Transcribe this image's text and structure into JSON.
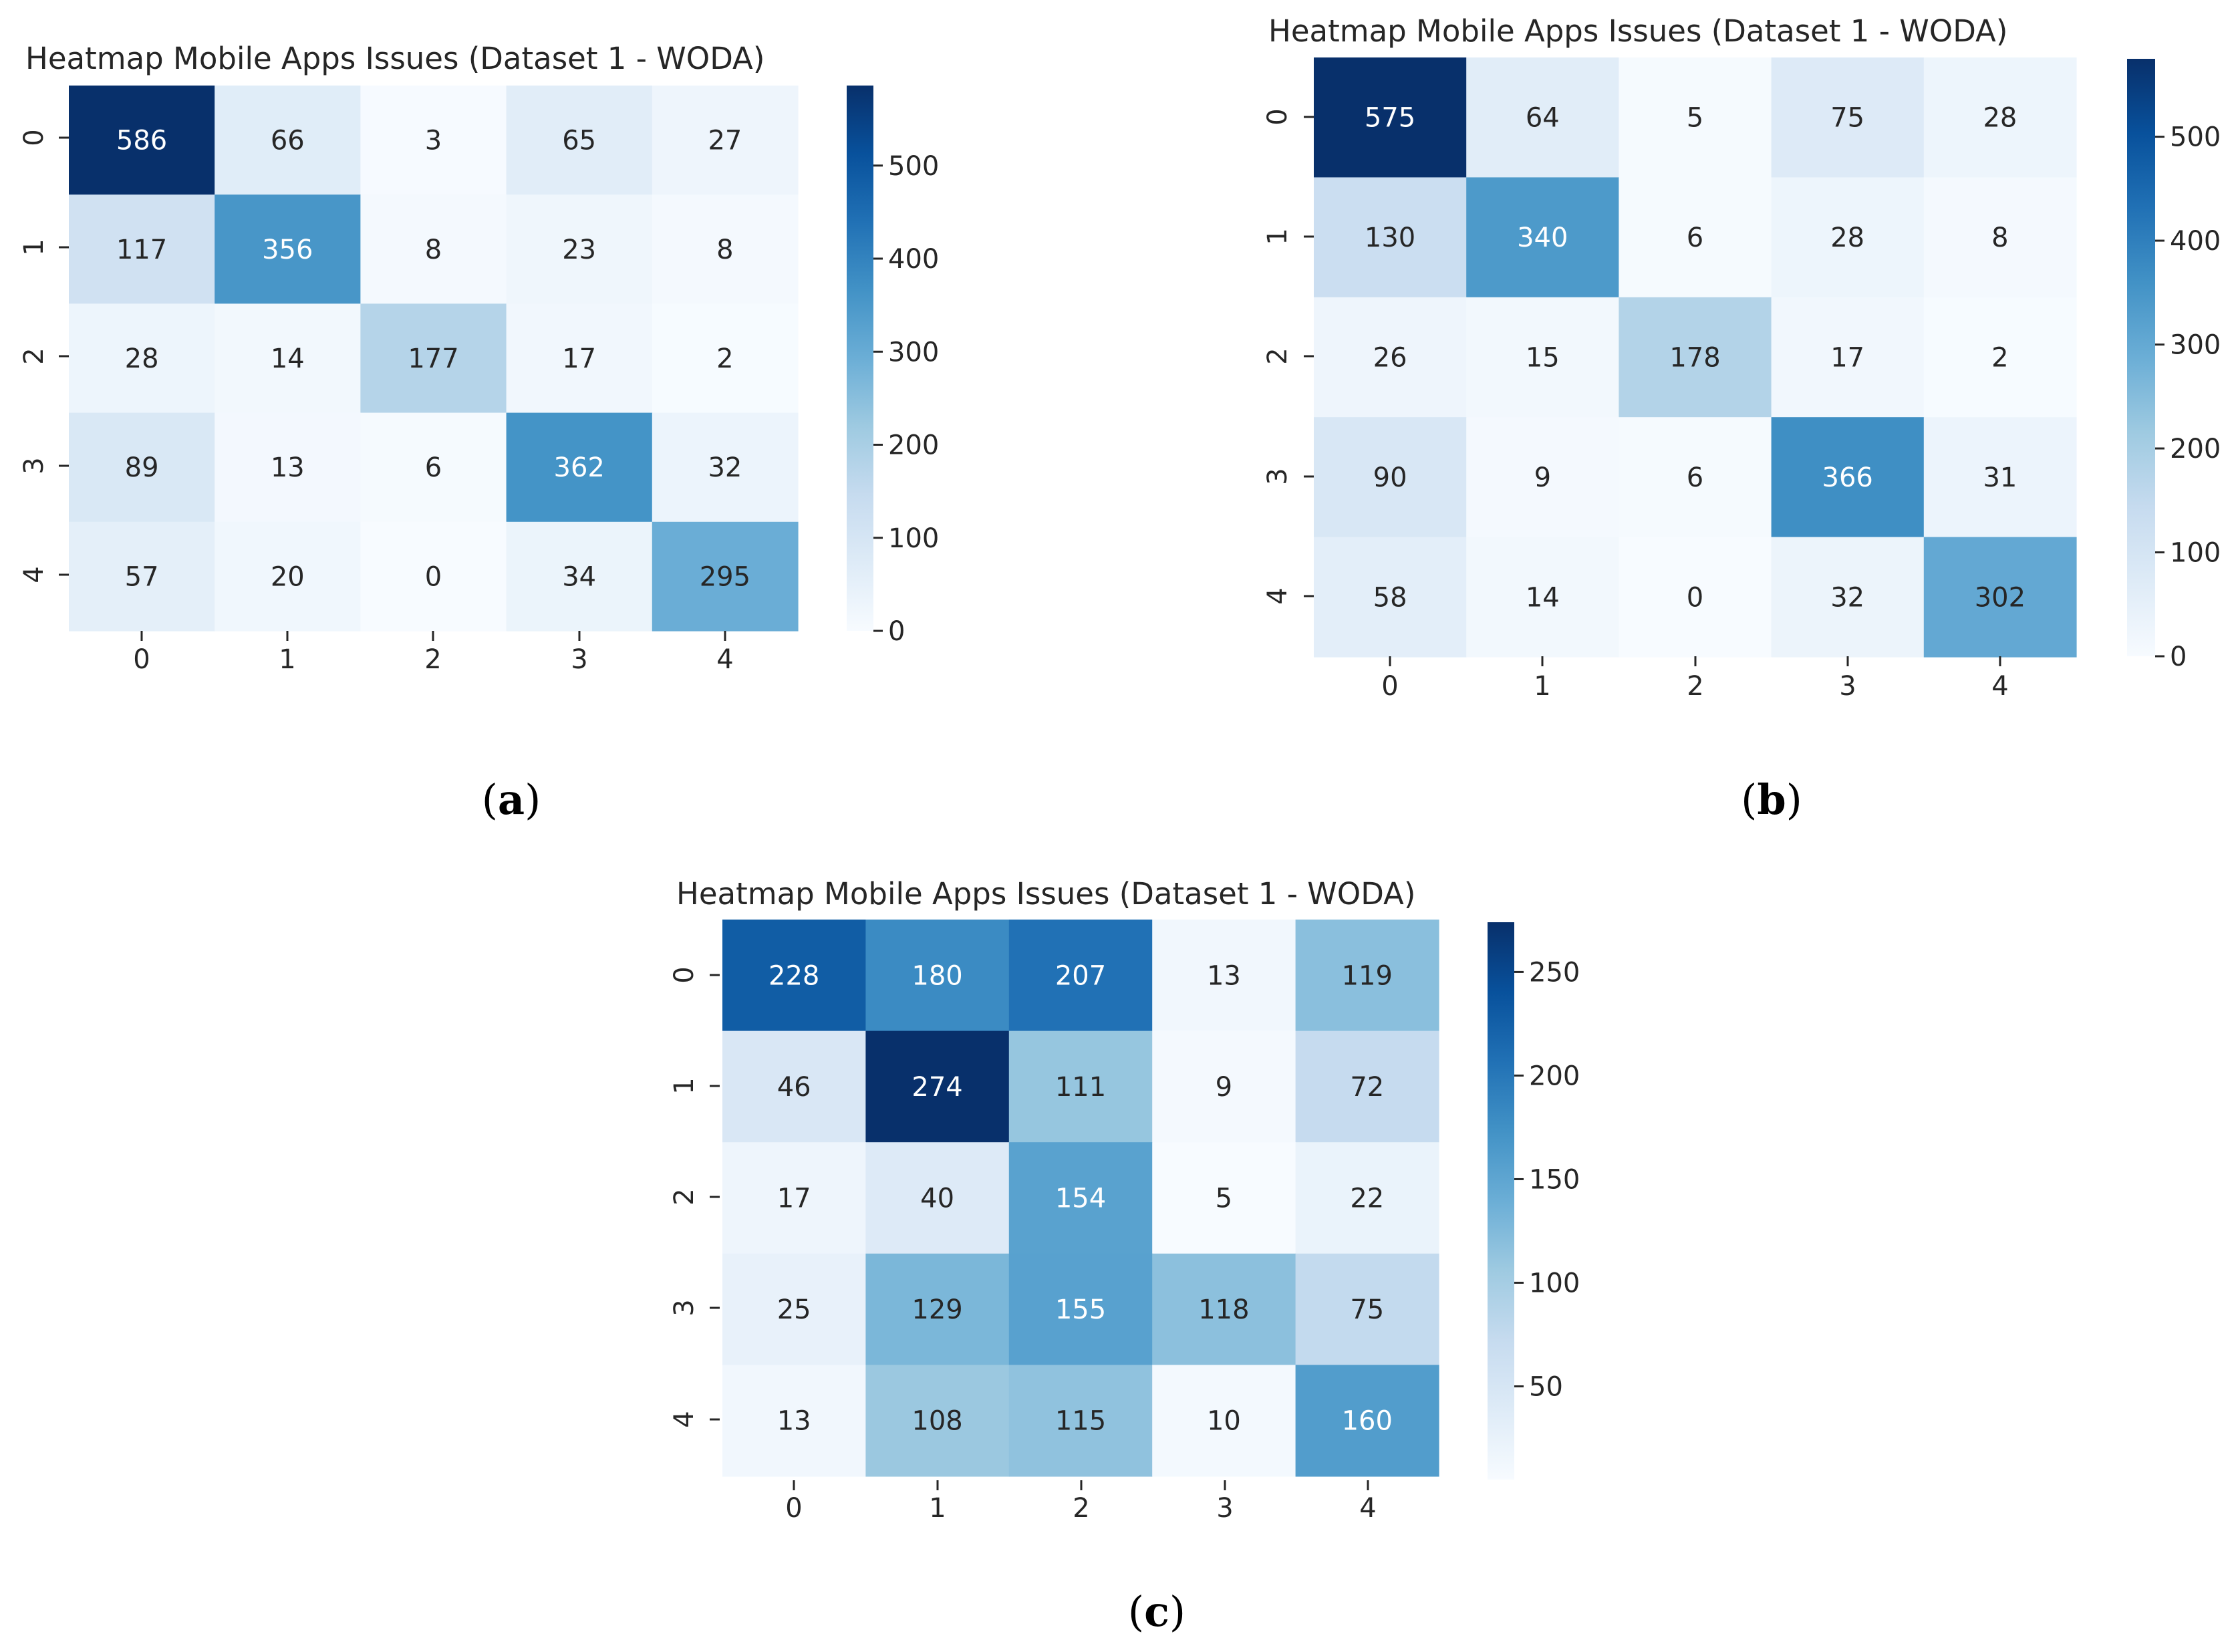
{
  "chart_data": [
    {
      "id": "a",
      "type": "heatmap",
      "title": "Heatmap  Mobile Apps Issues (Dataset 1 - WODA)",
      "caption_letter": "a",
      "x_tick_labels": [
        "0",
        "1",
        "2",
        "3",
        "4"
      ],
      "y_tick_labels": [
        "0",
        "1",
        "2",
        "3",
        "4"
      ],
      "values": [
        [
          586,
          66,
          3,
          65,
          27
        ],
        [
          117,
          356,
          8,
          23,
          8
        ],
        [
          28,
          14,
          177,
          17,
          2
        ],
        [
          89,
          13,
          6,
          362,
          32
        ],
        [
          57,
          20,
          0,
          34,
          295
        ]
      ],
      "colormap": "Blues",
      "vmin": 0,
      "vmax": 586,
      "colorbar_ticks": [
        0,
        100,
        200,
        300,
        400,
        500
      ]
    },
    {
      "id": "b",
      "type": "heatmap",
      "title": "Heatmap  Mobile Apps Issues (Dataset 1 - WODA)",
      "caption_letter": "b",
      "x_tick_labels": [
        "0",
        "1",
        "2",
        "3",
        "4"
      ],
      "y_tick_labels": [
        "0",
        "1",
        "2",
        "3",
        "4"
      ],
      "values": [
        [
          575,
          64,
          5,
          75,
          28
        ],
        [
          130,
          340,
          6,
          28,
          8
        ],
        [
          26,
          15,
          178,
          17,
          2
        ],
        [
          90,
          9,
          6,
          366,
          31
        ],
        [
          58,
          14,
          0,
          32,
          302
        ]
      ],
      "colormap": "Blues",
      "vmin": 0,
      "vmax": 575,
      "colorbar_ticks": [
        0,
        100,
        200,
        300,
        400,
        500
      ]
    },
    {
      "id": "c",
      "type": "heatmap",
      "title": "Heatmap  Mobile Apps Issues (Dataset 1 - WODA)",
      "caption_letter": "c",
      "x_tick_labels": [
        "0",
        "1",
        "2",
        "3",
        "4"
      ],
      "y_tick_labels": [
        "0",
        "1",
        "2",
        "3",
        "4"
      ],
      "values": [
        [
          228,
          180,
          207,
          13,
          119
        ],
        [
          46,
          274,
          111,
          9,
          72
        ],
        [
          17,
          40,
          154,
          5,
          22
        ],
        [
          25,
          129,
          155,
          118,
          75
        ],
        [
          13,
          108,
          115,
          10,
          160
        ]
      ],
      "colormap": "Blues",
      "vmin": 5,
      "vmax": 274,
      "colorbar_ticks": [
        50,
        100,
        150,
        200,
        250
      ]
    }
  ]
}
